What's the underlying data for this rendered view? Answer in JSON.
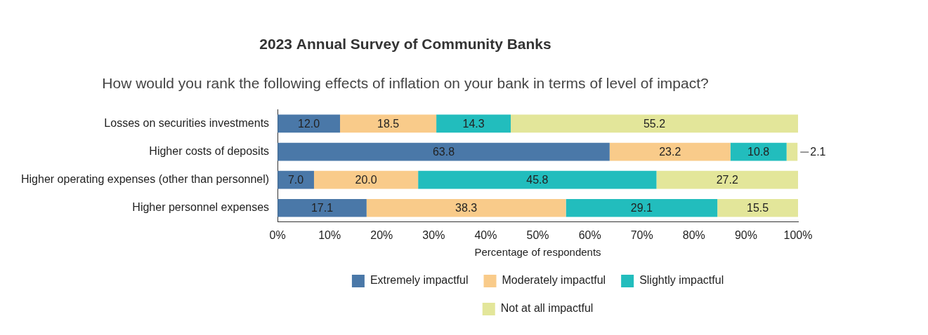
{
  "chart_data": {
    "type": "bar",
    "orientation": "horizontal",
    "stacked": true,
    "data_labels": true,
    "grid": false,
    "legend": "bottom",
    "title": "2023 Annual Survey of Community Banks",
    "subtitle": "How would you rank the following effects of inflation on your bank in terms of level of impact?",
    "x_label": "Percentage of respondents",
    "categories": [
      "Losses on securities investments",
      "Higher costs of deposits",
      "Higher operating expenses (other than personnel)",
      "Higher personnel expenses"
    ],
    "series": [
      {
        "name": "Extremely impactful",
        "color": "#4a78a8",
        "values": [
          12.0,
          63.8,
          7.0,
          17.1
        ],
        "value_labels": [
          "12.0",
          "63.8",
          "7.0",
          "17.1"
        ]
      },
      {
        "name": "Moderately impactful",
        "color": "#f9cb8a",
        "values": [
          18.5,
          23.2,
          20.0,
          38.3
        ],
        "value_labels": [
          "18.5",
          "23.2",
          "20.0",
          "38.3"
        ]
      },
      {
        "name": "Slightly impactful",
        "color": "#22bdbd",
        "values": [
          14.3,
          10.8,
          45.8,
          29.1
        ],
        "value_labels": [
          "14.3",
          "10.8",
          "45.8",
          "29.1"
        ]
      },
      {
        "name": "Not at all impactful",
        "color": "#e3e69a",
        "values": [
          55.2,
          2.1,
          27.2,
          15.5
        ],
        "value_labels": [
          "55.2",
          "2.1",
          "27.2",
          "15.5"
        ]
      }
    ],
    "xlim": [
      0,
      100
    ],
    "xticks": [
      {
        "value": 0,
        "label": "0%"
      },
      {
        "value": 10,
        "label": "10%"
      },
      {
        "value": 20,
        "label": "20%"
      },
      {
        "value": 30,
        "label": "30%"
      },
      {
        "value": 40,
        "label": "40%"
      },
      {
        "value": 50,
        "label": "50%"
      },
      {
        "value": 60,
        "label": "60%"
      },
      {
        "value": 70,
        "label": "70%"
      },
      {
        "value": 80,
        "label": "80%"
      },
      {
        "value": 90,
        "label": "90%"
      },
      {
        "value": 100,
        "label": "100%"
      }
    ]
  }
}
